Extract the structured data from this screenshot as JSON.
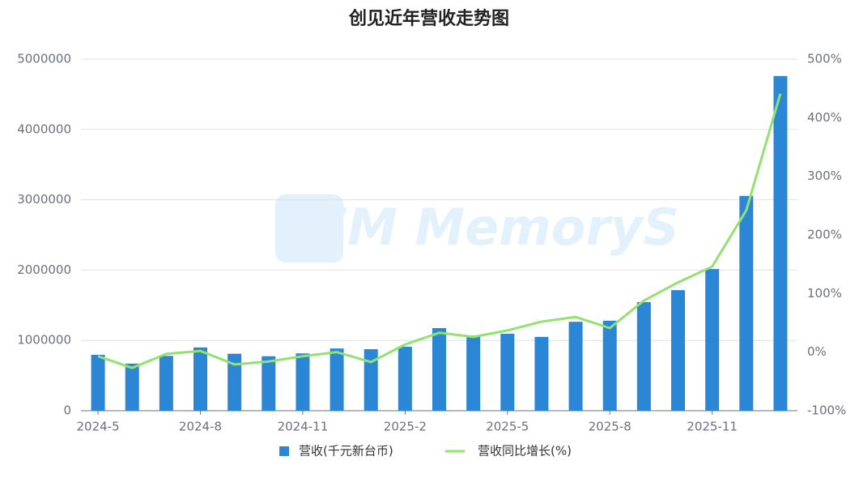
{
  "chart_data": {
    "type": "bar_line",
    "title": "创见近年营收走势图",
    "watermark": "CFM MemoryS",
    "categories": [
      "2024-5",
      null,
      null,
      "2024-8",
      null,
      null,
      "2024-11",
      null,
      null,
      "2025-2",
      null,
      null,
      "2025-5",
      null,
      null,
      "2025-8",
      null,
      null,
      "2025-11",
      null,
      null
    ],
    "series": [
      {
        "name": "营收(千元新台币)",
        "type": "bar",
        "color": "#2b87d6",
        "values": [
          795000,
          670000,
          780000,
          900000,
          810000,
          775000,
          815000,
          885000,
          875000,
          910000,
          1175000,
          1070000,
          1095000,
          1050000,
          1265000,
          1280000,
          1545000,
          1715000,
          2015000,
          3055000,
          4760000
        ]
      },
      {
        "name": "营收同比增长(%)",
        "type": "line",
        "axis": "y2",
        "color": "#91e26f",
        "values": [
          -7,
          -27,
          -3,
          2,
          -21,
          -16,
          -7,
          0,
          -17,
          13,
          33,
          26,
          37,
          52,
          60,
          41,
          88,
          119,
          146,
          242,
          441
        ]
      }
    ],
    "ylim": [
      0,
      5000000
    ],
    "yticks": [
      0,
      1000000,
      2000000,
      3000000,
      4000000,
      5000000
    ],
    "y2lim": [
      -100,
      500
    ],
    "y2ticks": [
      {
        "value": -100,
        "label": "-100%"
      },
      {
        "value": 0,
        "label": "0%"
      },
      {
        "value": 100,
        "label": "100%"
      },
      {
        "value": 200,
        "label": "200%"
      },
      {
        "value": 300,
        "label": "300%"
      },
      {
        "value": 400,
        "label": "400%"
      },
      {
        "value": 500,
        "label": "500%"
      }
    ],
    "grid": true
  }
}
